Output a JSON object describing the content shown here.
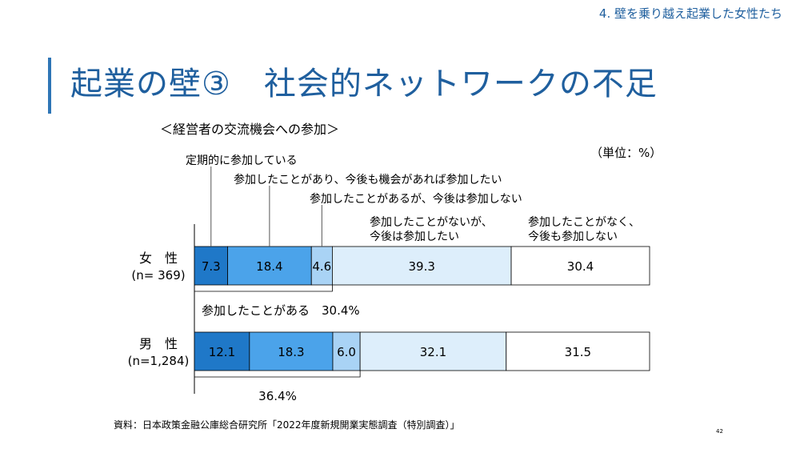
{
  "header": {
    "section_label": "4. 壁を乗り越え起業した女性たち",
    "title": "起業の壁③　社会的ネットワークの不足",
    "subtitle": "＜経営者の交流機会への参加＞",
    "unit": "（単位：%）"
  },
  "footer": {
    "source": "資料：日本政策金融公庫総合研究所「2022年度新規開業実態調査（特別調査）」",
    "page_number": "42"
  },
  "chart_data": {
    "type": "bar",
    "orientation": "horizontal-stacked-100",
    "categories": [
      {
        "line1": "女　性",
        "line2": "(n=  369)"
      },
      {
        "line1": "男　性",
        "line2": "(n=1,284)"
      }
    ],
    "series": [
      {
        "name": "定期的に参加している",
        "color": "#1f78c8",
        "values": [
          7.3,
          12.1
        ]
      },
      {
        "name": "参加したことがあり、今後も機会があれば参加したい",
        "color": "#4ba3ea",
        "values": [
          18.4,
          18.3
        ]
      },
      {
        "name": "参加したことがあるが、今後は参加しない",
        "color": "#a9d3f5",
        "values": [
          4.6,
          6.0
        ]
      },
      {
        "name": "参加したことがないが、\n今後は参加したい",
        "color": "#ddeefb",
        "values": [
          39.3,
          32.1
        ]
      },
      {
        "name": "参加したことがなく、\n今後も参加しない",
        "color": "#ffffff",
        "values": [
          30.4,
          31.5
        ]
      }
    ],
    "bracket_labels": [
      "参加したことがある　30.4%",
      "36.4%"
    ]
  }
}
